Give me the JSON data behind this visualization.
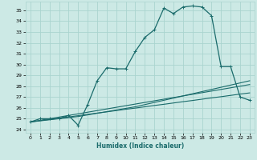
{
  "xlabel": "Humidex (Indice chaleur)",
  "xlim": [
    -0.5,
    23.5
  ],
  "ylim": [
    23.7,
    35.8
  ],
  "yticks": [
    24,
    25,
    26,
    27,
    28,
    29,
    30,
    31,
    32,
    33,
    34,
    35
  ],
  "xticks": [
    0,
    1,
    2,
    3,
    4,
    5,
    6,
    7,
    8,
    9,
    10,
    11,
    12,
    13,
    14,
    15,
    16,
    17,
    18,
    19,
    20,
    21,
    22,
    23
  ],
  "background_color": "#cce9e5",
  "grid_color": "#aad4cf",
  "line_color": "#1a6b6b",
  "series": [
    {
      "x": [
        0,
        1,
        2,
        3,
        4,
        5,
        6,
        7,
        8,
        9,
        10,
        11,
        12,
        13,
        14,
        15,
        16,
        17,
        18,
        19,
        20,
        21,
        22,
        23
      ],
      "y": [
        24.7,
        25.0,
        25.0,
        25.0,
        25.3,
        24.4,
        26.3,
        28.5,
        29.7,
        29.6,
        29.6,
        31.2,
        32.5,
        33.2,
        35.2,
        34.7,
        35.3,
        35.4,
        35.3,
        34.5,
        29.8,
        29.8,
        27.0,
        26.7
      ],
      "marker": "+",
      "markersize": 3.5,
      "linewidth": 0.9,
      "has_marker": true
    },
    {
      "x": [
        0,
        1,
        2,
        3,
        4,
        5,
        6,
        7,
        8,
        9,
        10,
        11,
        12,
        13,
        14,
        15,
        16,
        17,
        18,
        19,
        20,
        21,
        22,
        23
      ],
      "y": [
        24.7,
        24.82,
        24.93,
        25.05,
        25.16,
        25.28,
        25.4,
        25.52,
        25.63,
        25.75,
        25.87,
        25.98,
        26.1,
        26.22,
        26.33,
        26.45,
        26.57,
        26.68,
        26.8,
        26.92,
        27.03,
        27.15,
        27.27,
        27.38
      ],
      "marker": null,
      "markersize": 0,
      "linewidth": 0.8,
      "has_marker": false
    },
    {
      "x": [
        0,
        1,
        2,
        3,
        4,
        5,
        6,
        7,
        8,
        9,
        10,
        11,
        12,
        13,
        14,
        15,
        16,
        17,
        18,
        19,
        20,
        21,
        22,
        23
      ],
      "y": [
        24.7,
        24.85,
        25.0,
        25.15,
        25.3,
        25.45,
        25.6,
        25.75,
        25.9,
        26.05,
        26.2,
        26.35,
        26.5,
        26.65,
        26.8,
        26.95,
        27.1,
        27.25,
        27.4,
        27.55,
        27.7,
        27.85,
        28.0,
        28.15
      ],
      "marker": null,
      "markersize": 0,
      "linewidth": 0.8,
      "has_marker": false
    },
    {
      "x": [
        0,
        1,
        2,
        3,
        4,
        5,
        6,
        7,
        8,
        9,
        10,
        11,
        12,
        13,
        14,
        15,
        16,
        17,
        18,
        19,
        20,
        21,
        22,
        23
      ],
      "y": [
        24.7,
        24.8,
        24.9,
        25.0,
        25.1,
        25.2,
        25.35,
        25.5,
        25.65,
        25.8,
        25.95,
        26.1,
        26.3,
        26.5,
        26.7,
        26.9,
        27.1,
        27.3,
        27.5,
        27.7,
        27.9,
        28.1,
        28.3,
        28.5
      ],
      "marker": null,
      "markersize": 0,
      "linewidth": 0.8,
      "has_marker": false
    }
  ]
}
